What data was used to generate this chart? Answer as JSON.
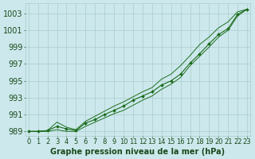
{
  "title": "Graphe pression niveau de la mer (hPa)",
  "x_hours": [
    0,
    1,
    2,
    3,
    4,
    5,
    6,
    7,
    8,
    9,
    10,
    11,
    12,
    13,
    14,
    15,
    16,
    17,
    18,
    19,
    20,
    21,
    22,
    23
  ],
  "line1_marked": [
    989.0,
    989.0,
    989.1,
    989.6,
    989.3,
    989.1,
    990.0,
    990.4,
    991.0,
    991.5,
    992.0,
    992.7,
    993.2,
    993.7,
    994.5,
    995.0,
    995.8,
    997.1,
    998.2,
    999.4,
    1000.5,
    1001.2,
    1002.9,
    1003.5
  ],
  "line2": [
    989.0,
    989.0,
    989.1,
    990.1,
    989.5,
    989.2,
    990.2,
    990.8,
    991.4,
    992.0,
    992.5,
    993.1,
    993.7,
    994.2,
    995.2,
    995.8,
    996.8,
    998.0,
    999.3,
    1000.2,
    1001.3,
    1002.0,
    1003.2,
    1003.5
  ],
  "line3": [
    989.0,
    989.0,
    989.0,
    989.2,
    989.0,
    989.0,
    989.6,
    990.1,
    990.6,
    991.1,
    991.5,
    992.1,
    992.7,
    993.2,
    994.0,
    994.6,
    995.4,
    996.8,
    997.9,
    999.0,
    1000.2,
    1001.0,
    1002.7,
    1003.5
  ],
  "ylim": [
    988.5,
    1004.2
  ],
  "yticks": [
    989,
    991,
    993,
    995,
    997,
    999,
    1001,
    1003
  ],
  "line_color": "#1a6b1a",
  "marker": "D",
  "marker_size": 2.0,
  "bg_color": "#cce8ec",
  "grid_color": "#aacccc",
  "text_color": "#1a4a1a",
  "tick_fontsize": 6,
  "xlabel_fontsize": 7,
  "linewidth": 0.8
}
